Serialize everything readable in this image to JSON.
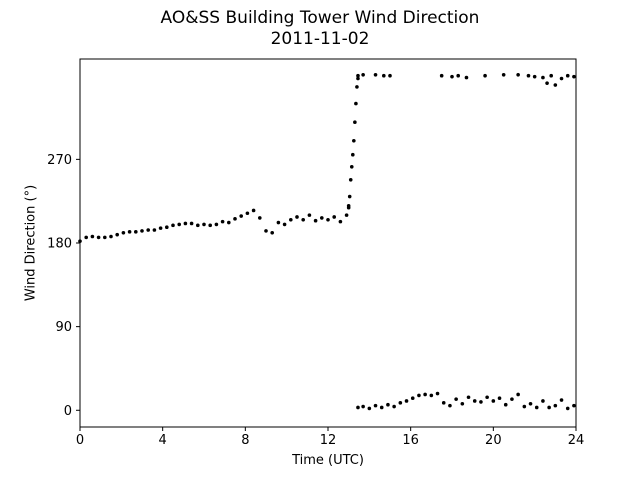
{
  "chart_data": {
    "type": "scatter",
    "title": "AO&SS Building Tower Wind Direction",
    "subtitle": "2011-11-02",
    "xlabel": "Time (UTC)",
    "ylabel": "Wind Direction (°)",
    "xlim": [
      0,
      24
    ],
    "ylim": [
      -18,
      378
    ],
    "xticks": [
      0,
      4,
      8,
      12,
      16,
      20,
      24
    ],
    "yticks": [
      0,
      90,
      180,
      270
    ],
    "grid": false,
    "marker_color": "#000000",
    "segments": [
      {
        "x": [
          0.0,
          0.3,
          0.6,
          0.9,
          1.2,
          1.5,
          1.8,
          2.1,
          2.4,
          2.7,
          3.0,
          3.3,
          3.6,
          3.9,
          4.2,
          4.5,
          4.8,
          5.1,
          5.4,
          5.7,
          6.0,
          6.3,
          6.6,
          6.9,
          7.2,
          7.5,
          7.8,
          8.1,
          8.4,
          8.7,
          9.0,
          9.3,
          9.6,
          9.9,
          10.2,
          10.5,
          10.8,
          11.1,
          11.4,
          11.7,
          12.0,
          12.3,
          12.6,
          12.9,
          13.0
        ],
        "y": [
          182,
          186,
          187,
          186,
          186,
          187,
          189,
          191,
          192,
          192,
          193,
          194,
          194,
          196,
          197,
          199,
          200,
          201,
          201,
          199,
          200,
          199,
          200,
          203,
          202,
          206,
          209,
          212,
          215,
          207,
          193,
          191,
          202,
          200,
          205,
          208,
          205,
          210,
          204,
          207,
          205,
          208,
          203,
          210,
          218
        ]
      },
      {
        "x": [
          13.0,
          13.05,
          13.1,
          13.15,
          13.2,
          13.25,
          13.3,
          13.35,
          13.4,
          13.45
        ],
        "y": [
          220,
          230,
          248,
          262,
          275,
          290,
          310,
          330,
          348,
          360
        ]
      },
      {
        "x": [
          13.45,
          13.7,
          14.3,
          14.7,
          15.0,
          17.5,
          18.0,
          18.3,
          18.7,
          19.6,
          20.5,
          21.2,
          21.7,
          22.0,
          22.4,
          22.6,
          22.8,
          23.0,
          23.3,
          23.6,
          23.9
        ],
        "y": [
          357,
          361,
          361,
          360,
          360,
          360,
          359,
          360,
          358,
          360,
          361,
          361,
          360,
          359,
          358,
          352,
          360,
          350,
          357,
          360,
          359
        ]
      },
      {
        "x": [
          13.45,
          13.7,
          14.0,
          14.3,
          14.6,
          14.9,
          15.2,
          15.5,
          15.8,
          16.1,
          16.4,
          16.7,
          17.0,
          17.3,
          17.6,
          17.9,
          18.2,
          18.5,
          18.8,
          19.1,
          19.4,
          19.7,
          20.0,
          20.3,
          20.6,
          20.9,
          21.2,
          21.5,
          21.8,
          22.1,
          22.4,
          22.7,
          23.0,
          23.3,
          23.6,
          23.9
        ],
        "y": [
          3,
          4,
          2,
          5,
          3,
          6,
          4,
          8,
          10,
          13,
          16,
          17,
          16,
          18,
          8,
          5,
          12,
          7,
          14,
          10,
          9,
          14,
          10,
          13,
          6,
          12,
          17,
          4,
          7,
          3,
          10,
          3,
          5,
          11,
          2,
          5
        ]
      }
    ]
  }
}
